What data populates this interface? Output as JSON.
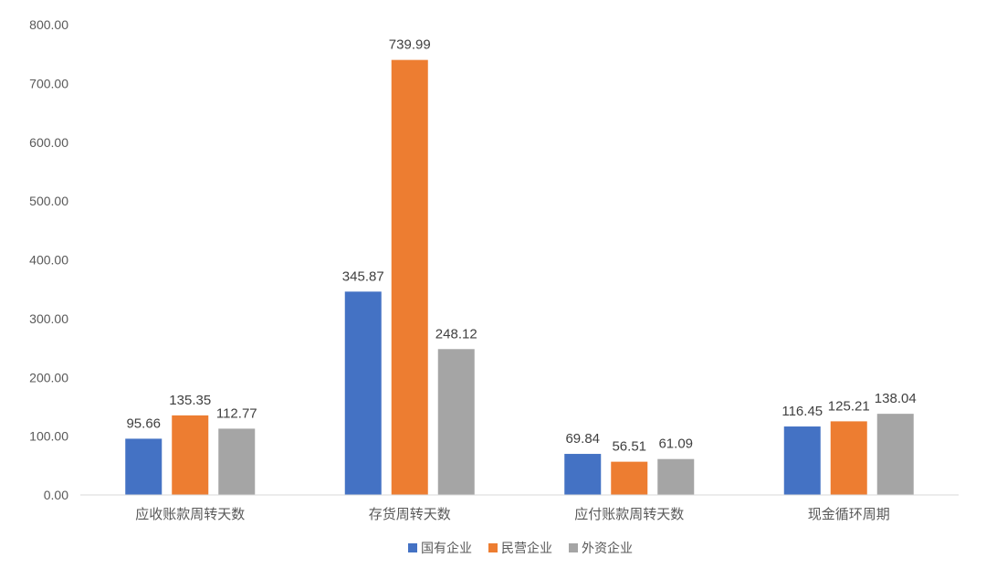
{
  "chart_data": {
    "type": "bar",
    "categories": [
      "应收账款周转天数",
      "存货周转天数",
      "应付账款周转天数",
      "现金循环周期"
    ],
    "series": [
      {
        "name": "国有企业",
        "color": "#4472C4",
        "values": [
          95.66,
          345.87,
          69.84,
          116.45
        ],
        "labels": [
          "95.66",
          "345.87",
          "69.84",
          "116.45"
        ]
      },
      {
        "name": "民营企业",
        "color": "#ED7D31",
        "values": [
          135.35,
          739.99,
          56.51,
          125.21
        ],
        "labels": [
          "135.35",
          "739.99",
          "56.51",
          "125.21"
        ]
      },
      {
        "name": "外资企业",
        "color": "#A5A5A5",
        "values": [
          112.77,
          248.12,
          61.09,
          138.04
        ],
        "labels": [
          "112.77",
          "248.12",
          "61.09",
          "138.04"
        ]
      }
    ],
    "ylim": [
      0,
      800
    ],
    "yticks": [
      "0.00",
      "100.00",
      "200.00",
      "300.00",
      "400.00",
      "500.00",
      "600.00",
      "700.00",
      "800.00"
    ],
    "grid": false,
    "legend": "bottom",
    "title": "",
    "xlabel": "",
    "ylabel": ""
  }
}
